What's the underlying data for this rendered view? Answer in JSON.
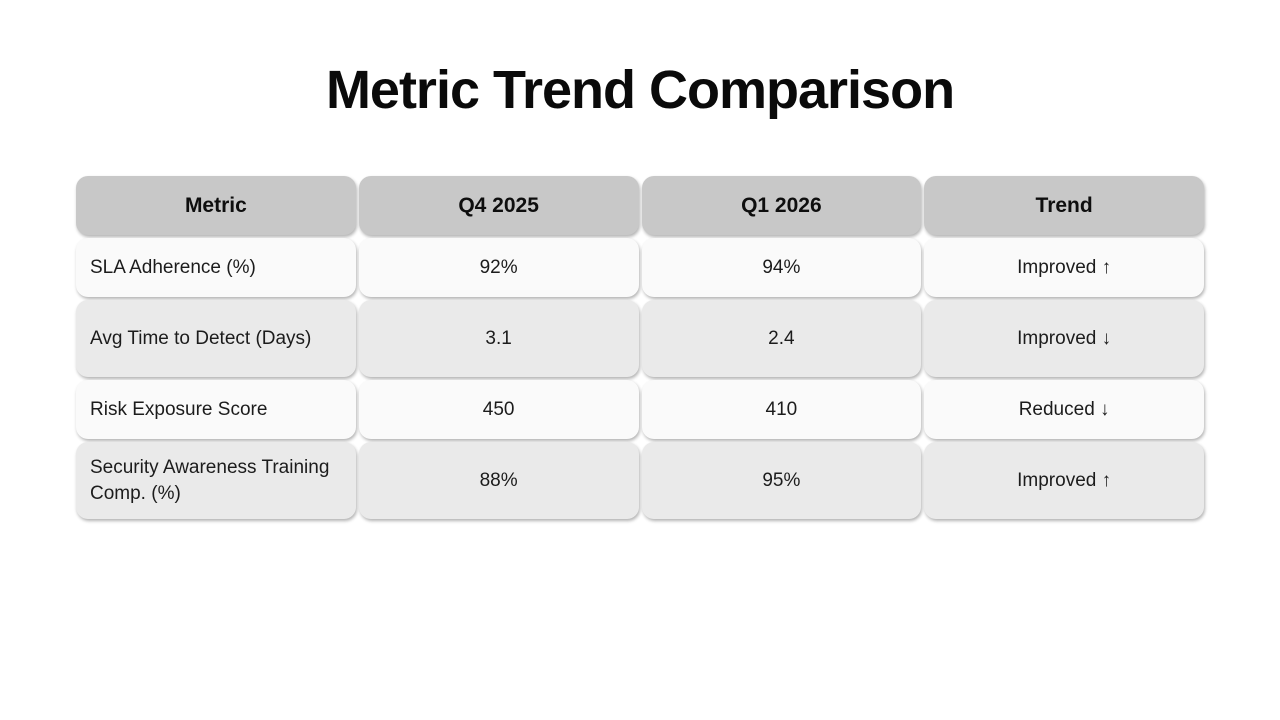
{
  "chart_data": {
    "type": "table",
    "title": "Metric Trend Comparison",
    "columns": [
      "Metric",
      "Q4 2025",
      "Q1 2026",
      "Trend"
    ],
    "rows": [
      [
        "SLA Adherence (%)",
        "92%",
        "94%",
        "Improved ↑"
      ],
      [
        "Avg Time to Detect (Days)",
        "3.1",
        "2.4",
        "Improved ↓"
      ],
      [
        "Risk Exposure Score",
        "450",
        "410",
        "Reduced ↓"
      ],
      [
        "Security Awareness Training Comp. (%)",
        "88%",
        "95%",
        "Improved ↑"
      ]
    ],
    "layout": {
      "legend": "none",
      "grid": "off",
      "row_striping": [
        "light",
        "dark",
        "light",
        "dark"
      ]
    }
  },
  "colors": {
    "header_bg": "#c8c8c8",
    "row_light_bg": "#fafafa",
    "row_dark_bg": "#eaeaea",
    "text": "#1c1c1c",
    "background": "#ffffff"
  }
}
